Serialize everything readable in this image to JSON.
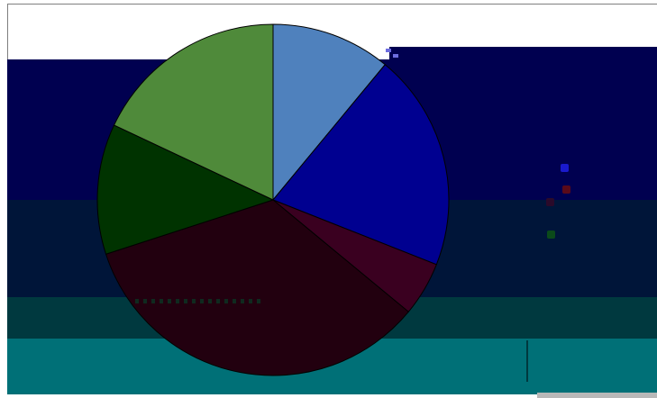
{
  "screen": {
    "title": ""
  },
  "colors": {
    "background": "#ffffff",
    "band_navy": "#000050",
    "band_midnight": "#001539",
    "band_teal_dark": "#00393f",
    "band_teal": "#007077"
  },
  "chart_data": {
    "type": "pie",
    "title": "",
    "categories": [
      "",
      "",
      "",
      "",
      "",
      ""
    ],
    "values": [
      11,
      20,
      5,
      34,
      12,
      18
    ],
    "slice_colors": [
      "#4f81bd",
      "#000090",
      "#3a0020",
      "#22000f",
      "#003300",
      "#4f8a3a"
    ],
    "center_gradient": "#9bbb59",
    "legend": "right",
    "legend_entries": [
      {
        "color": "#1a1acc"
      },
      {
        "color": "#5a0a1a"
      },
      {
        "color": "#2a0a2a"
      },
      {
        "color": "#0b4a1a"
      }
    ]
  }
}
